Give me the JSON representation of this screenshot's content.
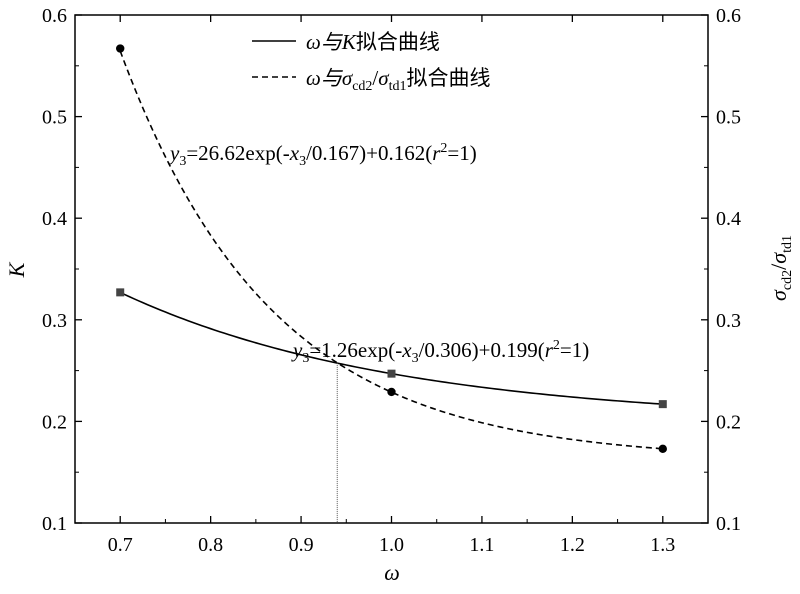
{
  "chart_data": {
    "type": "line",
    "x_label": "ω",
    "y_label_left": "K",
    "y_label_right": {
      "main": "σ",
      "sub1": "cd2",
      "slash": "/",
      "main2": "σ",
      "sub2": "td1"
    },
    "xlim": [
      0.65,
      1.35
    ],
    "ylim": [
      0.1,
      0.6
    ],
    "x_ticks": [
      "0.7",
      "0.8",
      "0.9",
      "1.0",
      "1.1",
      "1.2",
      "1.3"
    ],
    "y_ticks": [
      "0.1",
      "0.2",
      "0.3",
      "0.4",
      "0.5",
      "0.6"
    ],
    "series": [
      {
        "name": "K",
        "line_style": "solid",
        "marker": "square",
        "fit": {
          "a": 1.26,
          "t": 0.306,
          "c": 0.199
        },
        "points": [
          {
            "x": 0.7,
            "y": 0.327
          },
          {
            "x": 1.0,
            "y": 0.247
          },
          {
            "x": 1.3,
            "y": 0.217
          }
        ]
      },
      {
        "name": "σcd2/σtd1",
        "line_style": "dashed",
        "marker": "circle",
        "fit": {
          "a": 26.62,
          "t": 0.167,
          "c": 0.162
        },
        "points": [
          {
            "x": 0.7,
            "y": 0.567
          },
          {
            "x": 1.0,
            "y": 0.229
          },
          {
            "x": 1.3,
            "y": 0.173
          }
        ]
      }
    ],
    "intersection_x": 0.94,
    "legend": {
      "position": "top-center",
      "entries": [
        {
          "prefix": "ω与",
          "var": "K",
          "suffix": "拟合曲线"
        },
        {
          "prefix": "ω与",
          "var_a": "σ",
          "sub_a": "cd2",
          "slash": "/",
          "var_b": "σ",
          "sub_b": "td1",
          "suffix": "拟合曲线"
        }
      ]
    },
    "annotations": {
      "eq_dashed": {
        "y": "y",
        "sub": "3",
        "before": "=26.62exp(-",
        "x": "x",
        "xsub": "3",
        "after": "/0.167)+0.162(",
        "r": "r",
        "sup": "2",
        "end": "=1)"
      },
      "eq_solid": {
        "y": "y",
        "sub": "3",
        "before": "=1.26exp(-",
        "x": "x",
        "xsub": "3",
        "after": "/0.306)+0.199(",
        "r": "r",
        "sup": "2",
        "end": "=1)"
      }
    }
  }
}
